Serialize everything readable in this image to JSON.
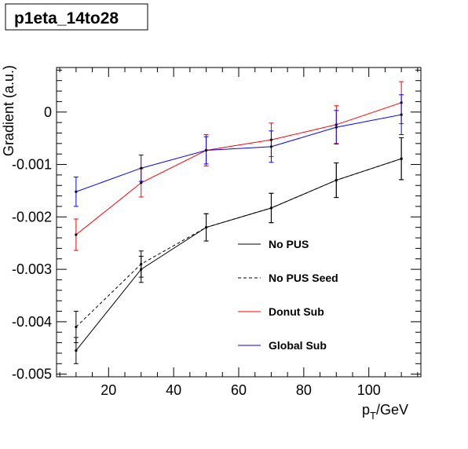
{
  "chart_data": {
    "type": "line",
    "title": "p1eta_14to28",
    "xlabel_main": "p",
    "xlabel_sub": "T",
    "xlabel_unit": "/GeV",
    "ylabel": "Gradient (a.u.)",
    "xlim": [
      4,
      116
    ],
    "ylim": [
      -0.00505,
      0.00085
    ],
    "x_ticks": [
      {
        "value": 20,
        "label": "20"
      },
      {
        "value": 40,
        "label": "40"
      },
      {
        "value": 60,
        "label": "60"
      },
      {
        "value": 80,
        "label": "80"
      },
      {
        "value": 100,
        "label": "100"
      }
    ],
    "y_ticks": [
      {
        "value": 0,
        "label": "0"
      },
      {
        "value": -0.001,
        "label": "-0.001"
      },
      {
        "value": -0.002,
        "label": "-0.002"
      },
      {
        "value": -0.003,
        "label": "-0.003"
      },
      {
        "value": -0.004,
        "label": "-0.004"
      },
      {
        "value": -0.005,
        "label": "-0.005"
      }
    ],
    "grid": false,
    "legend_position": "lower-right",
    "series": [
      {
        "name": "No PUS",
        "color": "#000000",
        "dash": "solid",
        "x": [
          10,
          30,
          50,
          70,
          90,
          110
        ],
        "y": [
          -0.00455,
          -0.003,
          -0.0022,
          -0.00183,
          -0.0013,
          -0.00089
        ],
        "err": [
          0.00025,
          0.00025,
          0.00026,
          0.00028,
          0.00033,
          0.0004
        ]
      },
      {
        "name": "No PUS Seed",
        "color": "#000000",
        "dash": "dashed",
        "x": [
          10,
          30,
          50,
          70,
          90,
          110
        ],
        "y": [
          -0.0041,
          -0.0029,
          -0.0022,
          -0.00183,
          -0.0013,
          -0.00089
        ],
        "err": [
          0.0003,
          0.00025,
          0.00026,
          0.00028,
          0.00033,
          0.0004
        ]
      },
      {
        "name": "Donut Sub",
        "color": "#ff0000",
        "dash": "solid",
        "x": [
          10,
          30,
          50,
          70,
          90,
          110
        ],
        "y": [
          -0.00234,
          -0.00135,
          -0.00073,
          -0.00053,
          -0.00024,
          0.00018
        ],
        "err": [
          0.0003,
          0.00027,
          0.0003,
          0.00032,
          0.00036,
          0.0004
        ]
      },
      {
        "name": "Global Sub",
        "color": "#0000ff",
        "dash": "solid",
        "x": [
          10,
          30,
          50,
          70,
          90,
          110
        ],
        "y": [
          -0.00152,
          -0.00107,
          -0.00073,
          -0.00066,
          -0.00029,
          -5e-05
        ],
        "err": [
          0.00028,
          0.00025,
          0.00026,
          0.0003,
          0.00032,
          0.00038
        ]
      }
    ]
  }
}
